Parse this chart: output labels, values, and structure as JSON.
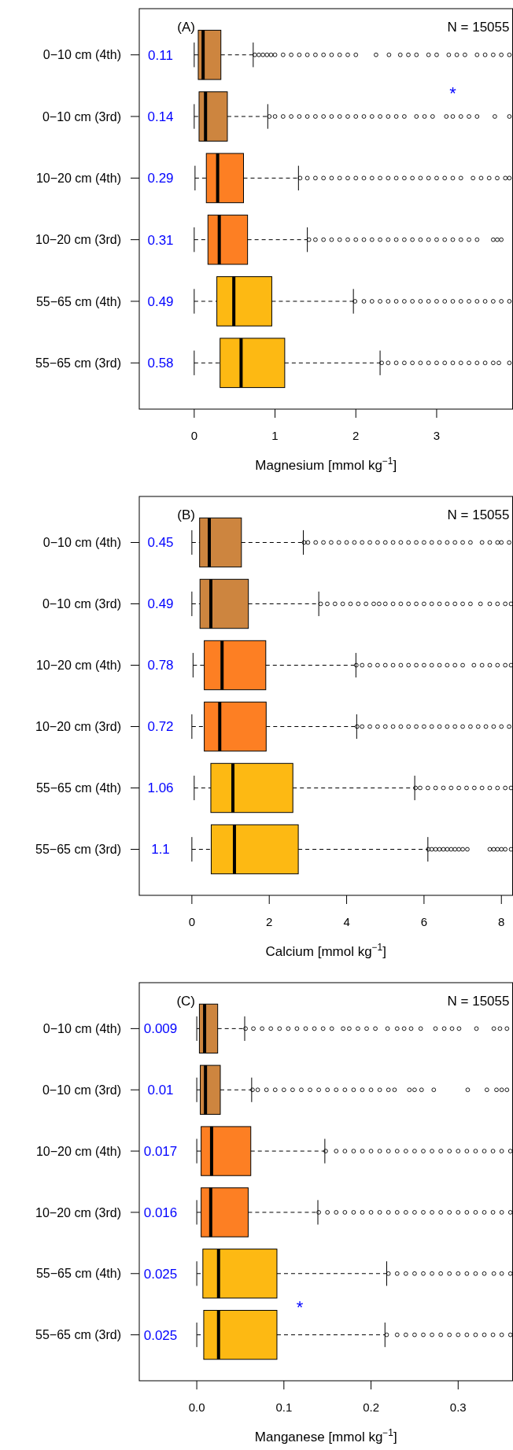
{
  "chart_data": [
    {
      "type": "box",
      "orientation": "horizontal",
      "title": "(A)",
      "xlabel": "Magnesium [mmol  kg$^{−1}$]",
      "categories": [
        "0−10 cm (4th)",
        "0−10 cm (3rd)",
        "10−20 cm (4th)",
        "10−20 cm (3rd)",
        "55−65 cm (4th)",
        "55−65 cm (3rd)"
      ],
      "colors": [
        "#cd853f",
        "#cd853f",
        "#fd7f23",
        "#fd7f23",
        "#fdb913",
        "#fdb913"
      ],
      "boxes": [
        {
          "low": 0,
          "q1": 0.05,
          "median": 0.11,
          "q3": 0.33,
          "high": 0.73,
          "outliers": [
            0.75,
            0.8,
            0.85,
            0.9,
            0.95,
            1.0,
            1.1,
            1.2,
            1.3,
            1.4,
            1.5,
            1.6,
            1.7,
            1.8,
            1.9,
            2.0,
            2.25,
            2.41,
            2.55,
            2.65,
            2.75,
            2.9,
            3.0,
            3.15,
            3.25,
            3.35,
            3.5,
            3.6,
            3.7,
            3.8,
            3.9
          ]
        },
        {
          "low": 0,
          "q1": 0.06,
          "median": 0.14,
          "q3": 0.41,
          "high": 0.91,
          "outliers": [
            0.93,
            1.0,
            1.1,
            1.2,
            1.3,
            1.4,
            1.5,
            1.6,
            1.7,
            1.8,
            1.9,
            2.0,
            2.1,
            2.2,
            2.3,
            2.4,
            2.5,
            2.6,
            2.75,
            2.85,
            2.95,
            3.12,
            3.2,
            3.3,
            3.4,
            3.5,
            3.72,
            3.9
          ]
        },
        {
          "low": 0.01,
          "q1": 0.15,
          "median": 0.29,
          "q3": 0.61,
          "high": 1.29,
          "outliers": [
            1.31,
            1.4,
            1.5,
            1.6,
            1.7,
            1.8,
            1.9,
            2.0,
            2.1,
            2.2,
            2.3,
            2.4,
            2.5,
            2.6,
            2.7,
            2.8,
            2.9,
            3.0,
            3.1,
            3.2,
            3.3,
            3.45,
            3.55,
            3.65,
            3.75,
            3.85,
            3.9
          ]
        },
        {
          "low": 0,
          "q1": 0.17,
          "median": 0.31,
          "q3": 0.66,
          "high": 1.4,
          "outliers": [
            1.42,
            1.5,
            1.6,
            1.7,
            1.8,
            1.9,
            2.0,
            2.1,
            2.2,
            2.3,
            2.4,
            2.5,
            2.6,
            2.7,
            2.8,
            2.9,
            3.0,
            3.1,
            3.2,
            3.3,
            3.4,
            3.5,
            3.7,
            3.75,
            3.8
          ]
        },
        {
          "low": 0,
          "q1": 0.28,
          "median": 0.49,
          "q3": 0.96,
          "high": 1.97,
          "outliers": [
            1.99,
            2.1,
            2.2,
            2.3,
            2.4,
            2.5,
            2.6,
            2.7,
            2.8,
            2.9,
            3.0,
            3.1,
            3.2,
            3.3,
            3.4,
            3.5,
            3.6,
            3.7,
            3.8,
            3.9
          ]
        },
        {
          "low": 0,
          "q1": 0.32,
          "median": 0.58,
          "q3": 1.12,
          "high": 2.3,
          "outliers": [
            2.32,
            2.4,
            2.5,
            2.6,
            2.7,
            2.8,
            2.9,
            3.0,
            3.1,
            3.2,
            3.3,
            3.4,
            3.5,
            3.6,
            3.7,
            3.77,
            3.9
          ]
        }
      ],
      "xlim": [
        -0.68,
        3.94
      ],
      "xticks": [
        0,
        1,
        2,
        3
      ],
      "value_labels": [
        "0.11",
        "0.14",
        "0.29",
        "0.31",
        "0.49",
        "0.58"
      ],
      "annotations": [
        "N = 15055",
        "*"
      ]
    },
    {
      "type": "box",
      "orientation": "horizontal",
      "title": "(B)",
      "xlabel": "Calcium [mmol  kg$^{−1}$]",
      "categories": [
        "0−10 cm (4th)",
        "0−10 cm (3rd)",
        "10−20 cm (4th)",
        "10−20 cm (3rd)",
        "55−65 cm (4th)",
        "55−65 cm (3rd)"
      ],
      "colors": [
        "#cd853f",
        "#cd853f",
        "#fd7f23",
        "#fd7f23",
        "#fdb913",
        "#fdb913"
      ],
      "boxes": [
        {
          "low": 0,
          "q1": 0.2,
          "median": 0.45,
          "q3": 1.28,
          "high": 2.88,
          "outliers": [
            2.9,
            3.0,
            3.2,
            3.4,
            3.6,
            3.8,
            4.0,
            4.2,
            4.4,
            4.6,
            4.8,
            5.0,
            5.2,
            5.4,
            5.6,
            5.8,
            6.0,
            6.2,
            6.4,
            6.6,
            6.8,
            7.0,
            7.2,
            7.5,
            7.7,
            7.9,
            8.0,
            8.2
          ]
        },
        {
          "low": 0,
          "q1": 0.21,
          "median": 0.49,
          "q3": 1.46,
          "high": 3.28,
          "outliers": [
            3.33,
            3.5,
            3.7,
            3.9,
            4.1,
            4.3,
            4.5,
            4.7,
            4.84,
            5.0,
            5.2,
            5.4,
            5.6,
            5.8,
            6.0,
            6.2,
            6.4,
            6.6,
            6.8,
            7.0,
            7.2,
            7.46,
            7.7,
            7.9,
            8.1,
            8.25
          ]
        },
        {
          "low": 0.03,
          "q1": 0.32,
          "median": 0.78,
          "q3": 1.91,
          "high": 4.24,
          "outliers": [
            4.25,
            4.4,
            4.6,
            4.8,
            5.0,
            5.2,
            5.4,
            5.6,
            5.8,
            6.0,
            6.2,
            6.4,
            6.6,
            6.8,
            7.0,
            7.29,
            7.5,
            7.7,
            7.9,
            8.1,
            8.25
          ]
        },
        {
          "low": 0,
          "q1": 0.32,
          "median": 0.72,
          "q3": 1.92,
          "high": 4.26,
          "outliers": [
            4.27,
            4.4,
            4.6,
            4.8,
            5.0,
            5.2,
            5.4,
            5.6,
            5.8,
            6.0,
            6.2,
            6.4,
            6.6,
            6.8,
            7.0,
            7.2,
            7.4,
            7.6,
            7.8,
            8.0,
            8.2
          ]
        },
        {
          "low": 0.06,
          "q1": 0.49,
          "median": 1.06,
          "q3": 2.61,
          "high": 5.76,
          "outliers": [
            5.78,
            5.9,
            6.1,
            6.3,
            6.5,
            6.7,
            6.9,
            7.1,
            7.3,
            7.5,
            7.7,
            7.9,
            8.1,
            8.25
          ]
        },
        {
          "low": 0,
          "q1": 0.5,
          "median": 1.1,
          "q3": 2.75,
          "high": 6.1,
          "outliers": [
            6.11,
            6.2,
            6.3,
            6.4,
            6.5,
            6.6,
            6.7,
            6.8,
            6.9,
            7.0,
            7.12,
            7.7,
            7.8,
            7.9,
            8.0,
            8.1,
            8.25
          ]
        }
      ],
      "xlim": [
        -1.36,
        8.29
      ],
      "xticks": [
        0,
        2,
        4,
        6,
        8
      ],
      "value_labels": [
        "0.45",
        "0.49",
        "0.78",
        "0.72",
        "1.06",
        "1.1"
      ],
      "annotations": [
        "N = 15055"
      ]
    },
    {
      "type": "box",
      "orientation": "horizontal",
      "title": "(C)",
      "xlabel": "Manganese [mmol  kg$^{−1}$]",
      "categories": [
        "0−10 cm (4th)",
        "0−10 cm (3rd)",
        "10−20 cm (4th)",
        "10−20 cm (3rd)",
        "55−65 cm (4th)",
        "55−65 cm (3rd)"
      ],
      "colors": [
        "#cd853f",
        "#cd853f",
        "#fd7f23",
        "#fd7f23",
        "#fdb913",
        "#fdb913"
      ],
      "boxes": [
        {
          "low": 0,
          "q1": 0.003,
          "median": 0.009,
          "q3": 0.024,
          "high": 0.055,
          "outliers": [
            0.056,
            0.065,
            0.075,
            0.085,
            0.095,
            0.105,
            0.115,
            0.125,
            0.135,
            0.145,
            0.155,
            0.168,
            0.175,
            0.185,
            0.195,
            0.205,
            0.219,
            0.23,
            0.238,
            0.246,
            0.257,
            0.274,
            0.284,
            0.293,
            0.301,
            0.321,
            0.341,
            0.348,
            0.356
          ]
        },
        {
          "low": 0,
          "q1": 0.004,
          "median": 0.01,
          "q3": 0.027,
          "high": 0.063,
          "outliers": [
            0.064,
            0.07,
            0.08,
            0.09,
            0.1,
            0.11,
            0.12,
            0.13,
            0.14,
            0.15,
            0.16,
            0.17,
            0.18,
            0.19,
            0.2,
            0.21,
            0.22,
            0.227,
            0.244,
            0.25,
            0.258,
            0.272,
            0.311,
            0.333,
            0.344,
            0.35,
            0.356
          ]
        },
        {
          "low": 0,
          "q1": 0.005,
          "median": 0.017,
          "q3": 0.062,
          "high": 0.147,
          "outliers": [
            0.148,
            0.16,
            0.17,
            0.18,
            0.19,
            0.2,
            0.21,
            0.22,
            0.23,
            0.24,
            0.25,
            0.26,
            0.27,
            0.28,
            0.29,
            0.3,
            0.31,
            0.32,
            0.33,
            0.34,
            0.35,
            0.36
          ]
        },
        {
          "low": 0,
          "q1": 0.005,
          "median": 0.016,
          "q3": 0.059,
          "high": 0.139,
          "outliers": [
            0.14,
            0.15,
            0.16,
            0.17,
            0.18,
            0.19,
            0.2,
            0.21,
            0.22,
            0.23,
            0.24,
            0.25,
            0.26,
            0.27,
            0.28,
            0.29,
            0.3,
            0.31,
            0.32,
            0.33,
            0.34,
            0.35,
            0.36
          ]
        },
        {
          "low": 0,
          "q1": 0.007,
          "median": 0.025,
          "q3": 0.092,
          "high": 0.218,
          "outliers": [
            0.22,
            0.23,
            0.24,
            0.25,
            0.26,
            0.27,
            0.28,
            0.29,
            0.3,
            0.31,
            0.32,
            0.33,
            0.341,
            0.35,
            0.36
          ]
        },
        {
          "low": 0,
          "q1": 0.008,
          "median": 0.025,
          "q3": 0.092,
          "high": 0.216,
          "outliers": [
            0.218,
            0.23,
            0.24,
            0.25,
            0.26,
            0.27,
            0.28,
            0.29,
            0.3,
            0.31,
            0.32,
            0.33,
            0.34,
            0.35,
            0.36
          ]
        }
      ],
      "xlim": [
        -0.066,
        0.3625
      ],
      "xticks": [
        {
          "value": 0,
          "label": "0.0"
        },
        0.1,
        0.2,
        0.3
      ],
      "value_labels": [
        "0.009",
        "0.01",
        "0.017",
        "0.016",
        "0.025",
        "0.025"
      ],
      "annotations": [
        "N = 15055",
        "*"
      ]
    }
  ]
}
